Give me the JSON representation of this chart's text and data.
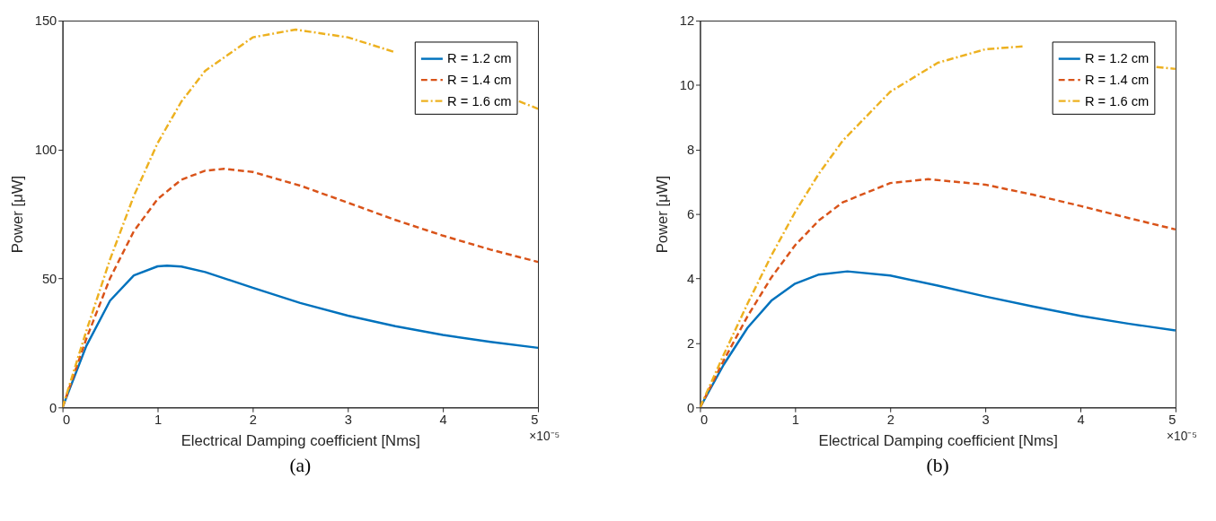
{
  "chart_data": [
    {
      "type": "line",
      "title": "(a)",
      "xlabel": "Electrical Damping coefficient [Nms]",
      "ylabel": "Power [μW]",
      "annotations": [
        "×10⁻⁵"
      ],
      "xlim": [
        0,
        5
      ],
      "xticks": [
        0,
        1,
        2,
        3,
        4,
        5
      ],
      "ylim": [
        0,
        150
      ],
      "yticks": [
        0,
        50,
        100,
        150
      ],
      "grid": false,
      "legend": "top right",
      "series": [
        {
          "name": "R = 1.2 cm",
          "color": "#0072bd",
          "line_style": "solid",
          "x": [
            0,
            0.25,
            0.5,
            0.75,
            1,
            1.1,
            1.25,
            1.5,
            2,
            2.5,
            3,
            3.5,
            4,
            4.5,
            5
          ],
          "values": [
            0,
            23.8,
            41.4,
            51.2,
            54.7,
            55,
            54.6,
            52.5,
            46.4,
            40.5,
            35.6,
            31.5,
            28.1,
            25.4,
            23.1
          ]
        },
        {
          "name": "R = 1.4 cm",
          "color": "#d95319",
          "line_style": "dashed",
          "x": [
            0,
            0.25,
            0.5,
            0.75,
            1,
            1.25,
            1.5,
            1.7,
            2,
            2.5,
            3,
            3.5,
            4,
            4.5,
            5
          ],
          "values": [
            0,
            26.6,
            50.1,
            68.3,
            80.8,
            88.3,
            91.8,
            92.5,
            91.3,
            86.0,
            79.4,
            72.7,
            66.6,
            61.2,
            56.4
          ]
        },
        {
          "name": "R = 1.6 cm",
          "color": "#edb120",
          "line_style": "dotted",
          "x": [
            0,
            0.25,
            0.5,
            0.75,
            1,
            1.25,
            1.5,
            2,
            2.45,
            3,
            3.5,
            4,
            4.5,
            4.8,
            5
          ],
          "values": [
            0,
            29.6,
            57.4,
            82.0,
            102.5,
            118.6,
            130.5,
            143.5,
            146.5,
            143.5,
            137.7,
            null,
            null,
            118.7,
            115.8
          ]
        }
      ]
    },
    {
      "type": "line",
      "title": "(b)",
      "xlabel": "Electrical Damping coefficient [Nms]",
      "ylabel": "Power [μW]",
      "annotations": [
        "×10⁻⁵"
      ],
      "xlim": [
        0,
        5
      ],
      "xticks": [
        0,
        1,
        2,
        3,
        4,
        5
      ],
      "ylim": [
        0,
        12
      ],
      "yticks": [
        0,
        2,
        4,
        6,
        8,
        10,
        12
      ],
      "grid": false,
      "legend": "top right",
      "series": [
        {
          "name": "R = 1.2 cm",
          "color": "#0072bd",
          "line_style": "solid",
          "x": [
            0,
            0.25,
            0.5,
            0.75,
            1,
            1.25,
            1.55,
            2,
            2.5,
            3,
            3.5,
            4,
            4.5,
            5
          ],
          "values": [
            0,
            1.33,
            2.47,
            3.31,
            3.84,
            4.12,
            4.22,
            4.09,
            3.78,
            3.44,
            3.13,
            2.84,
            2.6,
            2.39
          ]
        },
        {
          "name": "R = 1.4 cm",
          "color": "#d95319",
          "line_style": "dashed",
          "x": [
            0,
            0.25,
            0.5,
            0.75,
            1,
            1.25,
            1.5,
            2,
            2.4,
            3,
            3.5,
            4,
            4.5,
            5
          ],
          "values": [
            0,
            1.46,
            2.83,
            4.03,
            5.03,
            5.8,
            6.36,
            6.96,
            7.08,
            6.91,
            6.6,
            6.25,
            5.88,
            5.52
          ]
        },
        {
          "name": "R = 1.6 cm",
          "color": "#edb120",
          "line_style": "dotted",
          "x": [
            0,
            0.25,
            0.5,
            0.75,
            1,
            1.25,
            1.5,
            2,
            2.5,
            3,
            3.4,
            4,
            4.5,
            4.8,
            5
          ],
          "values": [
            0,
            1.64,
            3.22,
            4.71,
            6.06,
            7.25,
            8.27,
            9.79,
            10.69,
            11.11,
            11.2,
            null,
            null,
            10.56,
            10.5
          ]
        }
      ]
    }
  ]
}
